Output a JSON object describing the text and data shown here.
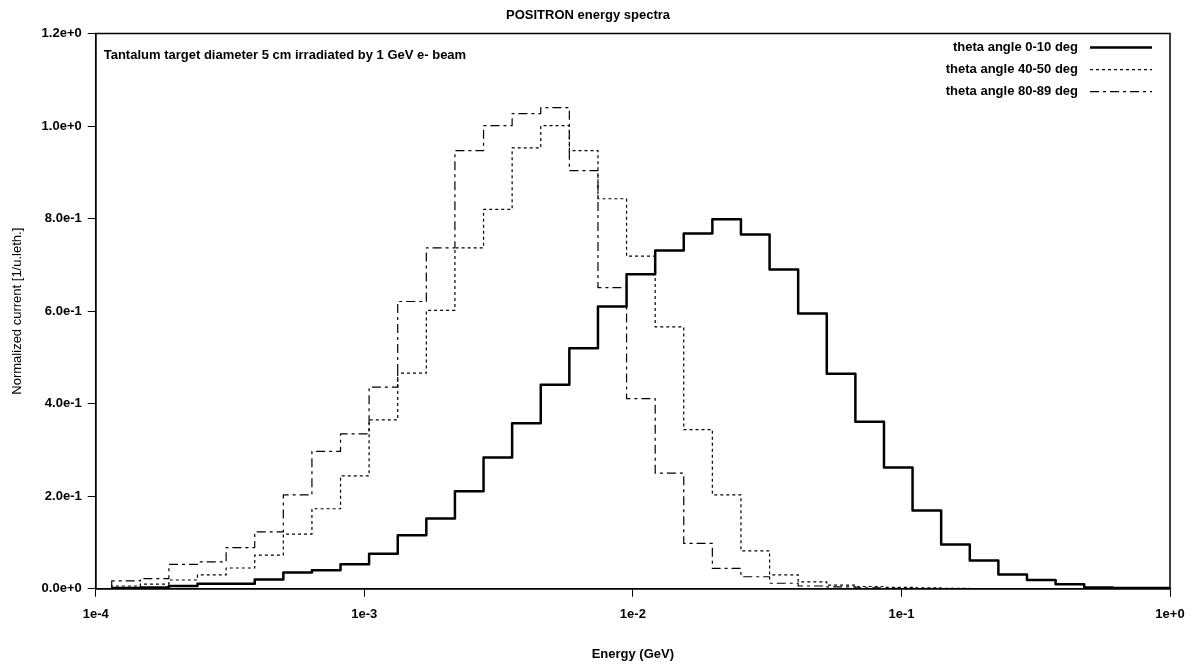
{
  "chart_data": {
    "type": "step",
    "title": "POSITRON energy spectra",
    "xlabel": "Energy (GeV)",
    "ylabel": "Normalized current [1/u.leth.]",
    "annotations": [
      "Tantalum target diameter 5 cm irradiated by 1 GeV e- beam"
    ],
    "x": [
      0.0001147,
      0.0001466,
      0.0001873,
      0.0002393,
      0.0003059,
      0.0003909,
      0.0004995,
      0.0006383,
      0.0008157,
      0.001042,
      0.001332,
      0.001702,
      0.002175,
      0.00278,
      0.003552,
      0.00454,
      0.005801,
      0.007414,
      0.009474,
      0.01211,
      0.01547,
      0.01977,
      0.02526,
      0.03229,
      0.04126,
      0.05272,
      0.06738,
      0.0861,
      0.11,
      0.1406,
      0.1797,
      0.2296,
      0.2934,
      0.375,
      0.4792,
      0.6124,
      0.7825,
      1
    ],
    "series": [
      {
        "name": "theta angle 0-10 deg",
        "color": "#000000",
        "line_style": "solid",
        "values": [
          0.002,
          0.002,
          0.003,
          0.006,
          0.011,
          0.011,
          0.02,
          0.035,
          0.04,
          0.053,
          0.076,
          0.116,
          0.152,
          0.211,
          0.284,
          0.358,
          0.441,
          0.52,
          0.61,
          0.68,
          0.731,
          0.768,
          0.799,
          0.766,
          0.69,
          0.595,
          0.465,
          0.361,
          0.262,
          0.169,
          0.096,
          0.061,
          0.031,
          0.019,
          0.01,
          0.003,
          0.002,
          0.002
        ]
      },
      {
        "name": "theta angle 40-50 deg",
        "color": "#000000",
        "line_style": "dotted",
        "values": [
          0.002,
          0.006,
          0.01,
          0.019,
          0.03,
          0.045,
          0.073,
          0.118,
          0.173,
          0.244,
          0.365,
          0.466,
          0.602,
          0.737,
          0.82,
          0.953,
          1.001,
          0.947,
          0.843,
          0.719,
          0.566,
          0.344,
          0.203,
          0.082,
          0.03,
          0.015,
          0.008,
          0.005,
          0.003,
          0.002,
          0.001,
          0,
          0,
          0,
          0,
          0,
          0,
          0
        ]
      },
      {
        "name": "theta angle 80-89 deg",
        "color": "#000000",
        "line_style": "dashed",
        "values": [
          0.004,
          0.017,
          0.022,
          0.053,
          0.058,
          0.089,
          0.123,
          0.203,
          0.297,
          0.335,
          0.436,
          0.621,
          0.737,
          0.947,
          1.001,
          1.027,
          1.04,
          0.904,
          0.651,
          0.411,
          0.25,
          0.098,
          0.044,
          0.026,
          0.012,
          0.006,
          0.004,
          0.002,
          0.001,
          0,
          0,
          0,
          0,
          0,
          0,
          0,
          0,
          0
        ]
      }
    ],
    "log": "x",
    "xlim": [
      0.0001,
      1
    ],
    "xticks": [
      {
        "value": 0.0001,
        "label": "1e-4"
      },
      {
        "value": 0.001,
        "label": "1e-3"
      },
      {
        "value": 0.01,
        "label": "1e-2"
      },
      {
        "value": 0.1,
        "label": "1e-1"
      },
      {
        "value": 1,
        "label": "1e+0"
      }
    ],
    "ylim": [
      0,
      1.2
    ],
    "yticks": [
      {
        "value": 0,
        "label": "0.0e+0"
      },
      {
        "value": 0.2,
        "label": "2.0e-1"
      },
      {
        "value": 0.4,
        "label": "4.0e-1"
      },
      {
        "value": 0.6,
        "label": "6.0e-1"
      },
      {
        "value": 0.8,
        "label": "8.0e-1"
      },
      {
        "value": 1,
        "label": "1.0e+0"
      },
      {
        "value": 1.2,
        "label": "1.2e+0"
      }
    ],
    "grid": false,
    "legend": "top right"
  }
}
